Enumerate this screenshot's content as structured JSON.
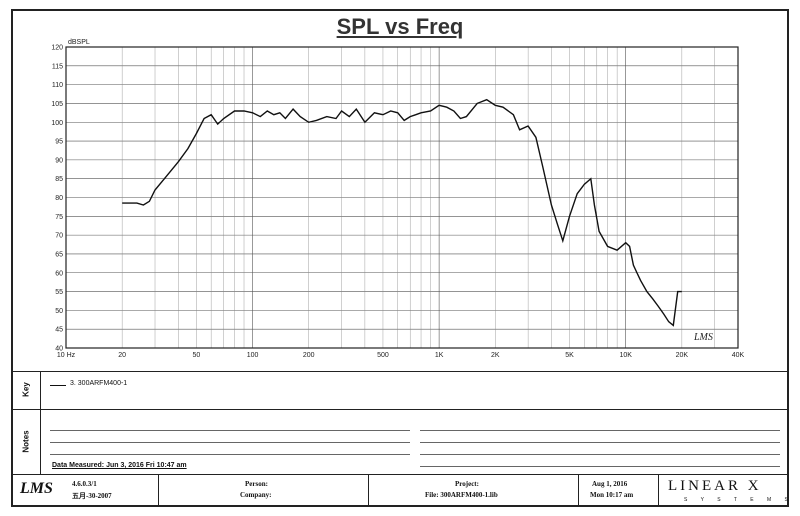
{
  "chart_data": {
    "type": "line",
    "title": "SPL vs Freq",
    "ylabel": "dBSPL",
    "xscale": "log",
    "xlim": [
      10,
      40000
    ],
    "ylim": [
      40,
      120
    ],
    "xticks": [
      10,
      20,
      50,
      100,
      200,
      500,
      1000,
      2000,
      5000,
      10000,
      20000,
      40000
    ],
    "xtick_labels": [
      "10 Hz",
      "20",
      "50",
      "100",
      "200",
      "500",
      "1K",
      "2K",
      "5K",
      "10K",
      "20K",
      "40K"
    ],
    "yticks": [
      40,
      45,
      50,
      55,
      60,
      65,
      70,
      75,
      80,
      85,
      90,
      95,
      100,
      105,
      110,
      115,
      120
    ],
    "grid": true,
    "series": [
      {
        "name": "3. 300ARFM400-1",
        "x": [
          20,
          24,
          26,
          28,
          30,
          35,
          40,
          45,
          50,
          55,
          60,
          65,
          70,
          80,
          90,
          100,
          110,
          120,
          130,
          140,
          150,
          165,
          180,
          200,
          220,
          250,
          280,
          300,
          330,
          360,
          400,
          450,
          500,
          550,
          600,
          650,
          700,
          750,
          800,
          900,
          1000,
          1100,
          1200,
          1300,
          1400,
          1600,
          1800,
          2000,
          2200,
          2500,
          2700,
          3000,
          3300,
          3600,
          4000,
          4300,
          4600,
          5000,
          5500,
          6000,
          6500,
          6800,
          7200,
          8000,
          9000,
          10000,
          10500,
          11000,
          12000,
          13000,
          14000,
          15000,
          16000,
          17000,
          18000,
          19000,
          20000
        ],
        "y": [
          78.5,
          78.5,
          78,
          79,
          82,
          86,
          89.5,
          93,
          97,
          101,
          102,
          99.5,
          101,
          103,
          103,
          102.5,
          101.5,
          103,
          102,
          102.5,
          101,
          103.5,
          101.5,
          100,
          100.5,
          101.5,
          101,
          103,
          101.5,
          103.5,
          100,
          102.5,
          102,
          103,
          102.5,
          100.5,
          101.5,
          102,
          102.5,
          103,
          104.5,
          104,
          103,
          101,
          101.5,
          105,
          106,
          104.5,
          104,
          102,
          98,
          99,
          96,
          88,
          78,
          73,
          68.5,
          75,
          81,
          83.5,
          85,
          78,
          71,
          67,
          66,
          68,
          67,
          62,
          58,
          55,
          53,
          51,
          49,
          47,
          46,
          55,
          55
        ]
      }
    ]
  },
  "legend": {
    "panel_label": "Key",
    "entry": "3. 300ARFM400-1"
  },
  "notes": {
    "panel_label": "Notes",
    "measured": "Data Measured: Jun 3, 2016 Fri 10:47 am"
  },
  "footer": {
    "logo": "LMS",
    "version": "4.6.0.3/1",
    "version_date": "五月-30-2007",
    "person_label": "Person:",
    "company_label": "Company:",
    "project_label": "Project:",
    "file_label": "File: 300ARFM400-1.lib",
    "date": "Aug 1, 2016",
    "time": "Mon 10:17 am",
    "brand": "LINEAR X",
    "brand_sub": "S Y S T E M S"
  },
  "watermark": "LMS"
}
